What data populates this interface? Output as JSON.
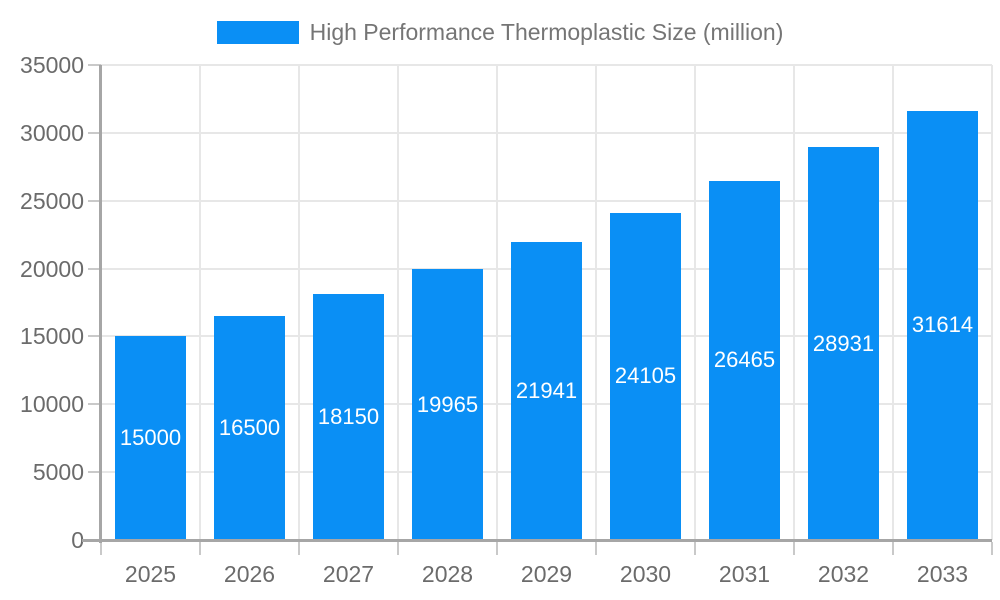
{
  "chart_data": {
    "type": "bar",
    "title": "High Performance Thermoplastic Size (million)",
    "categories": [
      "2025",
      "2026",
      "2027",
      "2028",
      "2029",
      "2030",
      "2031",
      "2032",
      "2033"
    ],
    "series": [
      {
        "name": "High Performance Thermoplastic Size (million)",
        "values": [
          15000,
          16500,
          18150,
          19965,
          21941,
          24105,
          26465,
          28931,
          31614
        ]
      }
    ],
    "value_labels": [
      "15000",
      "16500",
      "18150",
      "19965",
      "21941",
      "24105",
      "26465",
      "28931",
      "31614"
    ],
    "xlabel": "",
    "ylabel": "",
    "ylim": [
      0,
      35000
    ],
    "yticks": [
      0,
      5000,
      10000,
      15000,
      20000,
      25000,
      30000,
      35000
    ],
    "ytick_labels": [
      "0",
      "5000",
      "10000",
      "15000",
      "20000",
      "25000",
      "30000",
      "35000"
    ],
    "grid": true,
    "legend_position": "top",
    "value_label_position": "center-of-bar",
    "colors": {
      "bar": "#0a8ff5",
      "value_label": "#ffffff",
      "axis": "#a6a6a6",
      "gridline": "#e7e7e7",
      "tick": "#c9c9c9",
      "tick_label": "#6b6b6b",
      "legend_text": "#757575",
      "background": "#ffffff"
    }
  }
}
